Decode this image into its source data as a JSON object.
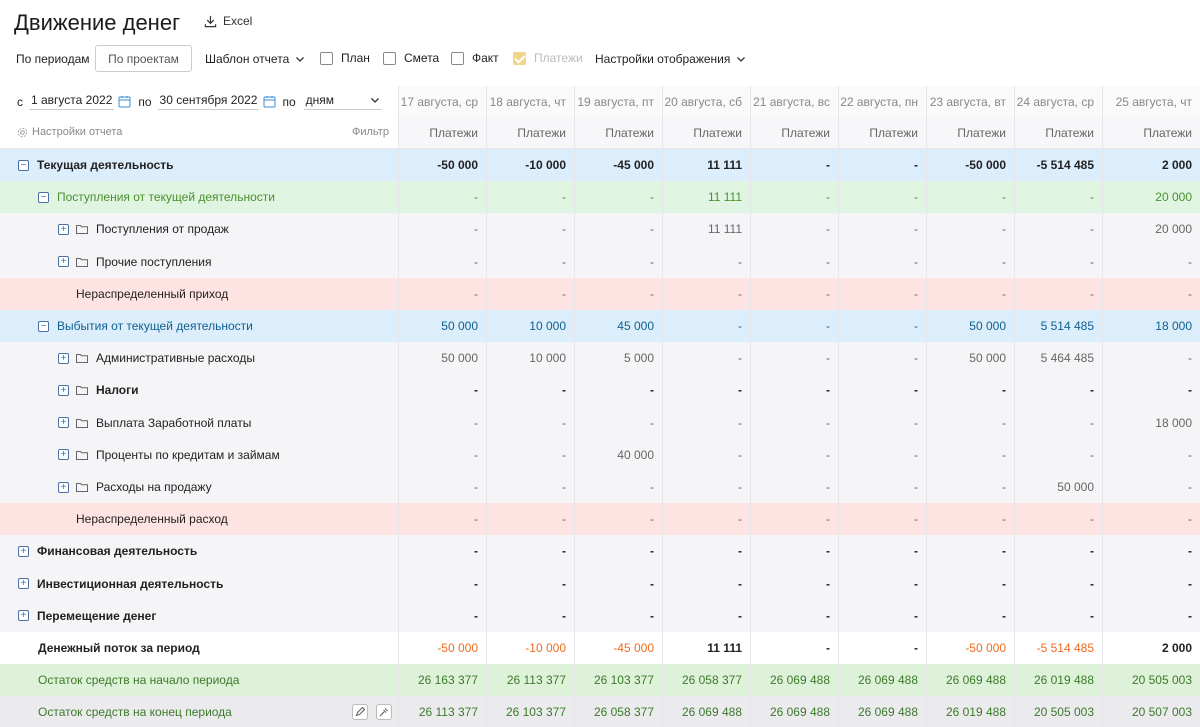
{
  "header": {
    "title": "Движение денег",
    "excel_label": "Excel"
  },
  "toolbar": {
    "tab_periods": "По периодам",
    "tab_projects": "По проектам",
    "template_label": "Шаблон отчета",
    "checkboxes": [
      {
        "label": "План",
        "checked": false
      },
      {
        "label": "Смета",
        "checked": false
      },
      {
        "label": "Факт",
        "checked": false
      },
      {
        "label": "Платежи",
        "checked": true
      }
    ],
    "display_settings": "Настройки отображения"
  },
  "filters": {
    "from_prefix": "с",
    "from_date": "1 августа 2022",
    "to_prefix": "по",
    "to_date": "30 сентября 2022",
    "by_prefix": "по",
    "granularity": "дням",
    "report_settings": "Настройки отчета",
    "filter_label": "Фильтр"
  },
  "columns": [
    {
      "date": "17 августа, ср",
      "sub": "Платежи"
    },
    {
      "date": "18 августа, чт",
      "sub": "Платежи"
    },
    {
      "date": "19 августа, пт",
      "sub": "Платежи"
    },
    {
      "date": "20 августа, сб",
      "sub": "Платежи"
    },
    {
      "date": "21 августа, вс",
      "sub": "Платежи"
    },
    {
      "date": "22 августа, пн",
      "sub": "Платежи"
    },
    {
      "date": "23 августа, вт",
      "sub": "Платежи"
    },
    {
      "date": "24 августа, ср",
      "sub": "Платежи"
    },
    {
      "date": "25 августа, чт",
      "sub": "Платежи"
    }
  ],
  "rows": [
    {
      "label": "Текущая деятельность",
      "values": [
        "-50 000",
        "-10 000",
        "-45 000",
        "11 111",
        "-",
        "-",
        "-50 000",
        "-5 514 485",
        "2 000"
      ]
    },
    {
      "label": "Поступления от текущей деятельности",
      "values": [
        "-",
        "-",
        "-",
        "11 111",
        "-",
        "-",
        "-",
        "-",
        "20 000"
      ]
    },
    {
      "label": "Поступления от продаж",
      "values": [
        "-",
        "-",
        "-",
        "11 111",
        "-",
        "-",
        "-",
        "-",
        "20 000"
      ]
    },
    {
      "label": "Прочие поступления",
      "values": [
        "-",
        "-",
        "-",
        "-",
        "-",
        "-",
        "-",
        "-",
        "-"
      ]
    },
    {
      "label": "Нераспределенный приход",
      "values": [
        "-",
        "-",
        "-",
        "-",
        "-",
        "-",
        "-",
        "-",
        "-"
      ]
    },
    {
      "label": "Выбытия от текущей деятельности",
      "values": [
        "50 000",
        "10 000",
        "45 000",
        "-",
        "-",
        "-",
        "50 000",
        "5 514 485",
        "18 000"
      ]
    },
    {
      "label": "Административные расходы",
      "values": [
        "50 000",
        "10 000",
        "5 000",
        "-",
        "-",
        "-",
        "50 000",
        "5 464 485",
        "-"
      ]
    },
    {
      "label": "Налоги",
      "values": [
        "-",
        "-",
        "-",
        "-",
        "-",
        "-",
        "-",
        "-",
        "-"
      ]
    },
    {
      "label": "Выплата Заработной платы",
      "values": [
        "-",
        "-",
        "-",
        "-",
        "-",
        "-",
        "-",
        "-",
        "18 000"
      ]
    },
    {
      "label": "Проценты по кредитам и займам",
      "values": [
        "-",
        "-",
        "40 000",
        "-",
        "-",
        "-",
        "-",
        "-",
        "-"
      ]
    },
    {
      "label": "Расходы на продажу",
      "values": [
        "-",
        "-",
        "-",
        "-",
        "-",
        "-",
        "-",
        "50 000",
        "-"
      ]
    },
    {
      "label": "Нераспределенный расход",
      "values": [
        "-",
        "-",
        "-",
        "-",
        "-",
        "-",
        "-",
        "-",
        "-"
      ]
    },
    {
      "label": "Финансовая деятельность",
      "values": [
        "-",
        "-",
        "-",
        "-",
        "-",
        "-",
        "-",
        "-",
        "-"
      ]
    },
    {
      "label": "Инвестиционная деятельность",
      "values": [
        "-",
        "-",
        "-",
        "-",
        "-",
        "-",
        "-",
        "-",
        "-"
      ]
    },
    {
      "label": "Перемещение денег",
      "values": [
        "-",
        "-",
        "-",
        "-",
        "-",
        "-",
        "-",
        "-",
        "-"
      ]
    },
    {
      "label": "Денежный поток за период",
      "values": [
        "-50 000",
        "-10 000",
        "-45 000",
        "11 111",
        "-",
        "-",
        "-50 000",
        "-5 514 485",
        "2 000"
      ]
    },
    {
      "label": "Остаток средств на начало периода",
      "values": [
        "26 163 377",
        "26 113 377",
        "26 103 377",
        "26 058 377",
        "26 069 488",
        "26 069 488",
        "26 069 488",
        "26 019 488",
        "20 505 003"
      ]
    },
    {
      "label": "Остаток средств на конец периода",
      "values": [
        "26 113 377",
        "26 103 377",
        "26 058 377",
        "26 069 488",
        "26 069 488",
        "26 069 488",
        "26 019 488",
        "20 505 003",
        "20 507 003"
      ]
    }
  ]
}
